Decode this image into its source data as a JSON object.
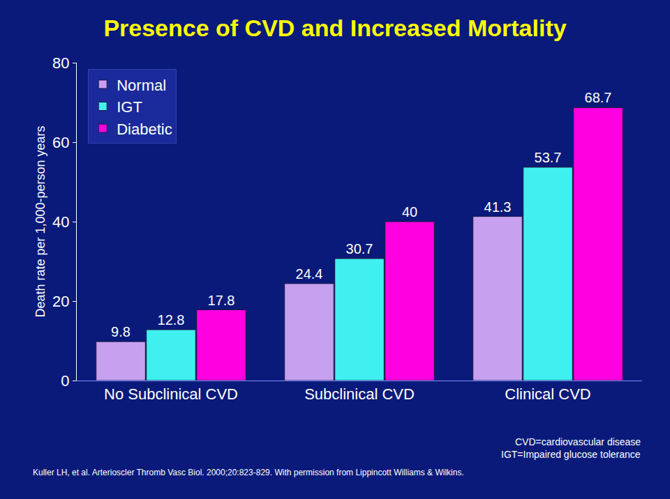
{
  "chart_data": {
    "type": "bar",
    "title": "Presence of CVD and Increased Mortality",
    "y_label": "Death rate per 1,000-person years",
    "categories": [
      "No Subclinical CVD",
      "Subclinical CVD",
      "Clinical CVD"
    ],
    "series": [
      {
        "name": "Normal",
        "color": "#c8a0f0",
        "values": [
          9.8,
          24.4,
          41.3
        ]
      },
      {
        "name": "IGT",
        "color": "#40f0f0",
        "values": [
          12.8,
          30.7,
          53.7
        ]
      },
      {
        "name": "Diabetic",
        "color": "#ff00e0",
        "values": [
          17.8,
          40,
          68.7
        ]
      }
    ],
    "ylim": [
      0,
      80
    ],
    "yticks": [
      0,
      20,
      40,
      60,
      80
    ],
    "grid": false,
    "legend": "top-left",
    "data_labels": true,
    "annotations": [
      "CVD=cardiovascular disease",
      "IGT=Impaired glucose tolerance"
    ],
    "source": "Kuller LH, et al. Arterioscler Thromb Vasc Biol. 2000;20:823-829. With permission from Lippincott Williams & Wilkins."
  }
}
